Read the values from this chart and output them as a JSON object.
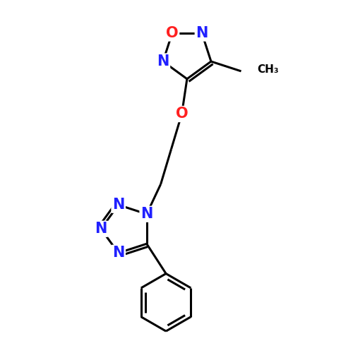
{
  "background_color": "#ffffff",
  "bond_color": "#000000",
  "N_color": "#2020ff",
  "O_color": "#ff2020",
  "font_size_atom": 15,
  "line_width": 2.2,
  "figsize": [
    5.0,
    5.0
  ],
  "dpi": 100,
  "xlim": [
    0,
    10
  ],
  "ylim": [
    0,
    10
  ]
}
